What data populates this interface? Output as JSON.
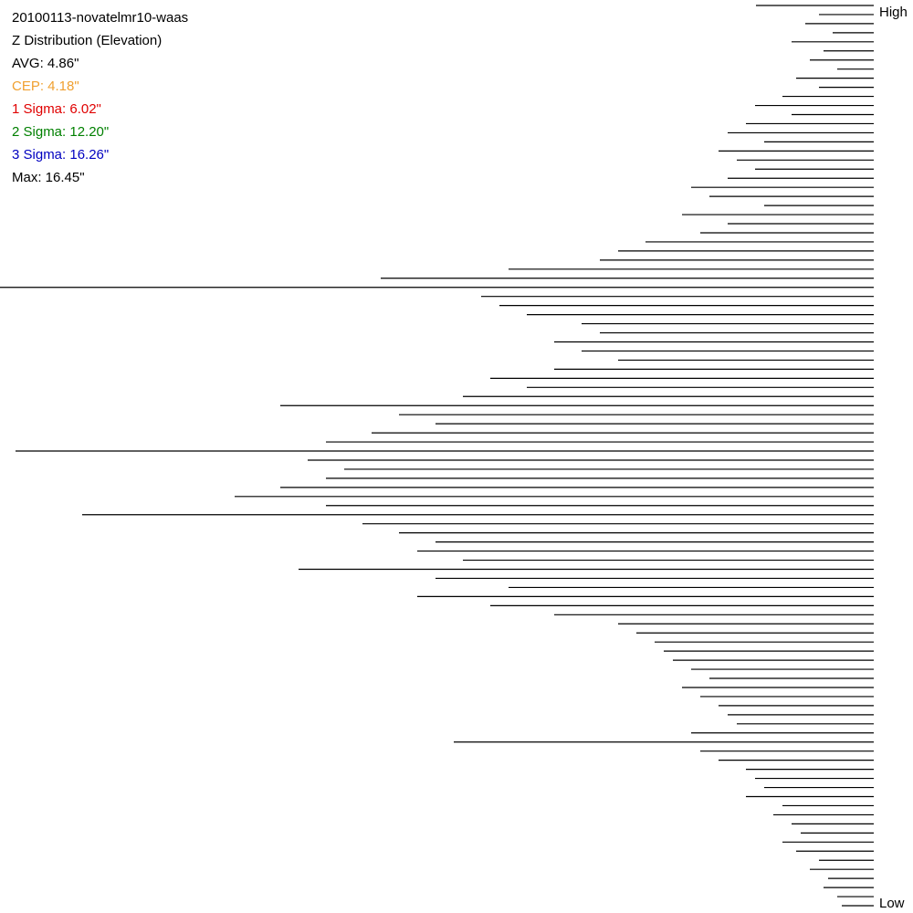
{
  "chart_data": {
    "type": "hbar-lines",
    "title": "20100113-novatelmr10-waas",
    "subtitle": "Z Distribution (Elevation)",
    "annotations": [
      {
        "text": "AVG: 4.86\"",
        "color": "#000000"
      },
      {
        "text": "CEP: 4.18\"",
        "color": "#f0a030"
      },
      {
        "text": "1 Sigma: 6.02\"",
        "color": "#e00000"
      },
      {
        "text": "2 Sigma: 12.20\"",
        "color": "#008000"
      },
      {
        "text": "3 Sigma: 16.26\"",
        "color": "#0000c0"
      },
      {
        "text": "Max: 16.45\"",
        "color": "#000000"
      }
    ],
    "top_label": "High",
    "bottom_label": "Low",
    "color": "#000000",
    "xlim": [
      0,
      957
    ],
    "values": [
      129,
      60,
      75,
      45,
      90,
      55,
      70,
      40,
      85,
      60,
      100,
      130,
      90,
      140,
      160,
      120,
      170,
      150,
      130,
      160,
      200,
      180,
      120,
      210,
      160,
      190,
      250,
      280,
      300,
      400,
      540,
      957,
      430,
      410,
      380,
      320,
      300,
      350,
      320,
      280,
      350,
      420,
      380,
      450,
      650,
      520,
      480,
      550,
      600,
      940,
      620,
      580,
      600,
      650,
      700,
      600,
      867,
      560,
      520,
      480,
      500,
      450,
      630,
      480,
      400,
      500,
      420,
      350,
      280,
      260,
      240,
      230,
      220,
      200,
      180,
      210,
      190,
      170,
      160,
      150,
      200,
      460,
      190,
      170,
      140,
      130,
      120,
      140,
      100,
      110,
      90,
      80,
      100,
      85,
      60,
      70,
      50,
      55,
      40,
      35
    ]
  }
}
